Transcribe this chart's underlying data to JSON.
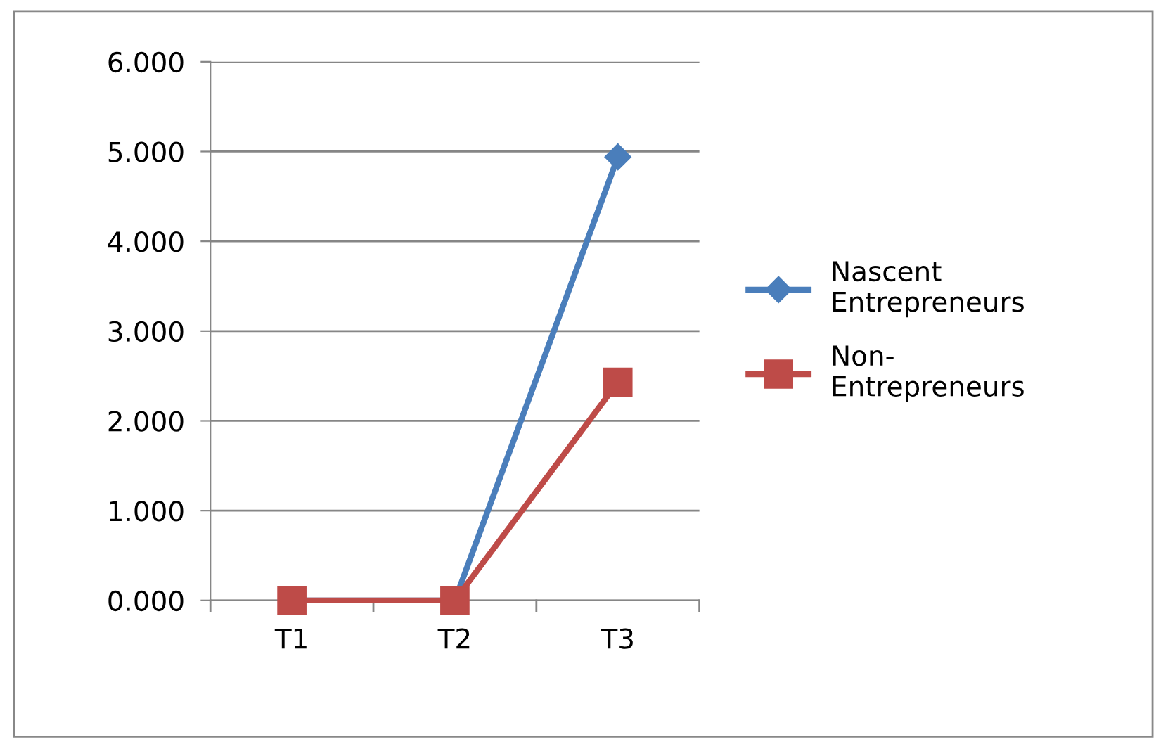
{
  "chart_data": {
    "type": "line",
    "categories": [
      "T1",
      "T2",
      "T3"
    ],
    "series": [
      {
        "name": "Nascent\nEntrepreneurs",
        "color": "#4a7ebb",
        "marker": "diamond",
        "values": [
          0,
          0,
          4.94
        ]
      },
      {
        "name": "Non-\nEntrepreneurs",
        "color": "#be4b48",
        "marker": "square",
        "values": [
          0,
          0,
          2.43
        ]
      }
    ],
    "ylim": [
      0,
      6
    ],
    "yticks": [
      {
        "value": 0,
        "label": "0.000"
      },
      {
        "value": 1,
        "label": "1.000"
      },
      {
        "value": 2,
        "label": "2.000"
      },
      {
        "value": 3,
        "label": "3.000"
      },
      {
        "value": 4,
        "label": "4.000"
      },
      {
        "value": 5,
        "label": "5.000"
      },
      {
        "value": 6,
        "label": "6.000"
      }
    ],
    "grid": "y",
    "legend": "right",
    "line_style": "solid"
  }
}
